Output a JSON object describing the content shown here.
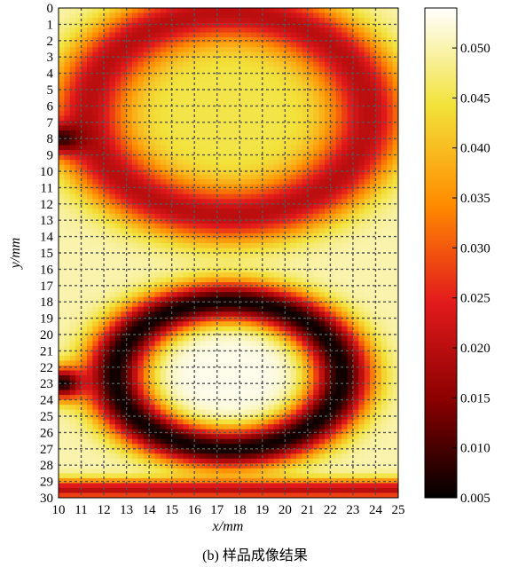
{
  "caption": "(b) 样品成像结果",
  "chart_data": {
    "type": "heatmap",
    "xlabel": "x/mm",
    "ylabel": "y/mm",
    "x_ticks": [
      10,
      11,
      12,
      13,
      14,
      15,
      16,
      17,
      18,
      19,
      20,
      21,
      22,
      23,
      24,
      25
    ],
    "y_ticks": [
      0,
      1,
      2,
      3,
      4,
      5,
      6,
      7,
      8,
      9,
      10,
      11,
      12,
      13,
      14,
      15,
      16,
      17,
      18,
      19,
      20,
      21,
      22,
      23,
      24,
      25,
      26,
      27,
      28,
      29,
      30
    ],
    "xlim": [
      10,
      25
    ],
    "ylim": [
      0,
      30
    ],
    "y_inverted": true,
    "grid": true,
    "colorbar": {
      "min": 0.005,
      "max": 0.054,
      "ticks": [
        0.005,
        0.01,
        0.015,
        0.02,
        0.025,
        0.03,
        0.035,
        0.04,
        0.045,
        0.05
      ],
      "tick_labels": [
        "0.005",
        "0.010",
        "0.015",
        "0.020",
        "0.025",
        "0.030",
        "0.035",
        "0.040",
        "0.045",
        "0.050"
      ],
      "colormap": "hot",
      "colors": [
        "#000000",
        "#8b0000",
        "#e31a1c",
        "#ff8c00",
        "#f2e23a",
        "#ffffff"
      ]
    },
    "features": [
      {
        "shape": "ring",
        "center": [
          17.5,
          6.5
        ],
        "radii": [
          6.2,
          6.2
        ],
        "ring_value": 0.02,
        "inside_value": 0.045,
        "description": "upper circular structure"
      },
      {
        "shape": "ring",
        "center": [
          17.5,
          22.5
        ],
        "radii": [
          5.0,
          4.5
        ],
        "ring_value": 0.006,
        "inside_value": 0.053,
        "description": "lower circular structure"
      },
      {
        "shape": "spot",
        "center": [
          10.2,
          8.0
        ],
        "value": 0.008
      },
      {
        "shape": "spot",
        "center": [
          10.2,
          23.0
        ],
        "value": 0.006
      },
      {
        "shape": "band",
        "y": 29.5,
        "value": 0.02
      }
    ],
    "background_value": 0.05
  }
}
